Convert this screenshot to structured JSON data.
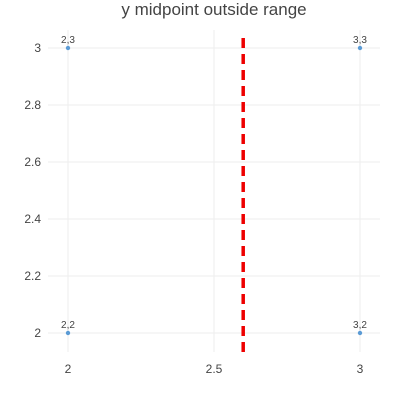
{
  "chart_data": {
    "type": "scatter",
    "title": "y midpoint outside range",
    "xlabel": "",
    "ylabel": "",
    "xlim": [
      2,
      3
    ],
    "ylim": [
      2,
      3
    ],
    "grid": true,
    "points": [
      {
        "x": 2,
        "y": 3,
        "label": "2,3"
      },
      {
        "x": 3,
        "y": 3,
        "label": "3,3"
      },
      {
        "x": 2,
        "y": 2,
        "label": "2,2"
      },
      {
        "x": 3,
        "y": 2,
        "label": "3,2"
      }
    ],
    "x_ticks": [
      {
        "value": 2,
        "label": "2"
      },
      {
        "value": 2.5,
        "label": "2.5"
      },
      {
        "value": 3,
        "label": "3"
      }
    ],
    "y_ticks": [
      {
        "value": 2,
        "label": "2"
      },
      {
        "value": 2.2,
        "label": "2.2"
      },
      {
        "value": 2.4,
        "label": "2.4"
      },
      {
        "value": 2.6,
        "label": "2.6"
      },
      {
        "value": 2.8,
        "label": "2.8"
      },
      {
        "value": 3,
        "label": "3"
      }
    ],
    "vertical_line": {
      "x": 2.6,
      "style": "dashed"
    },
    "point_color": "#5b9bd5",
    "line_color": "#ee0000"
  }
}
